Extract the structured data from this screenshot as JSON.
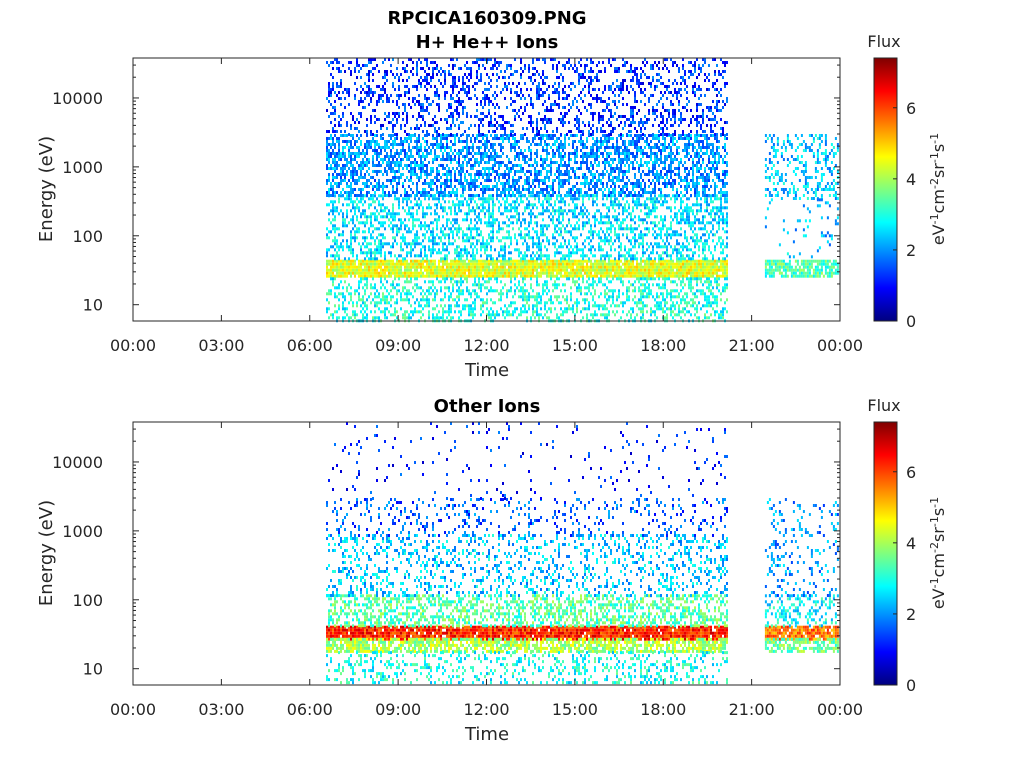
{
  "figure_title": "RPCICA160309.PNG",
  "colormap": [
    "#00007f",
    "#0000ff",
    "#007fff",
    "#00ffff",
    "#7fff7f",
    "#ffff00",
    "#ff7f00",
    "#ff0000",
    "#7f0000"
  ],
  "chart_data": [
    {
      "type": "heatmap",
      "title": "H+ He++ Ions",
      "xlabel": "Time",
      "ylabel": "Energy (eV)",
      "xticks": [
        "00:00",
        "03:00",
        "06:00",
        "09:00",
        "12:00",
        "15:00",
        "18:00",
        "21:00",
        "00:00"
      ],
      "xlim_hours": [
        0,
        24
      ],
      "yticks": [
        {
          "value": 10,
          "label": "10"
        },
        {
          "value": 100,
          "label": "100"
        },
        {
          "value": 1000,
          "label": "1000"
        },
        {
          "value": 10000,
          "label": "10000"
        }
      ],
      "ylim": [
        5.8,
        38000
      ],
      "yscale": "log",
      "colorbar": {
        "label": "Flux",
        "units": "eV-1cm-2sr-1s-1",
        "ticks": [
          0,
          2,
          4,
          6
        ],
        "range": [
          0,
          7.4
        ]
      },
      "coverage_hours": [
        [
          6.55,
          20.15
        ],
        [
          21.45,
          23.9
        ]
      ],
      "bands": [
        {
          "emin": 25,
          "emax": 45,
          "flux": 4.4,
          "density": 0.95,
          "hours": [
            6.55,
            20.15
          ]
        },
        {
          "emin": 25,
          "emax": 45,
          "flux": 3.3,
          "density": 0.75,
          "hours": [
            21.45,
            23.9
          ]
        },
        {
          "emin": 6,
          "emax": 25,
          "flux": 3.0,
          "density": 0.4,
          "hours": [
            6.55,
            20.15
          ]
        },
        {
          "emin": 45,
          "emax": 400,
          "flux": 2.6,
          "density": 0.45,
          "hours": [
            6.55,
            20.15
          ]
        },
        {
          "emin": 400,
          "emax": 3000,
          "flux": 2.0,
          "density": 0.55,
          "hours": [
            6.55,
            20.15
          ]
        },
        {
          "emin": 3000,
          "emax": 38000,
          "flux": 1.3,
          "density": 0.3,
          "hours": [
            6.55,
            20.15
          ]
        },
        {
          "emin": 350,
          "emax": 3000,
          "flux": 2.4,
          "density": 0.3,
          "hours": [
            21.45,
            23.9
          ]
        },
        {
          "emin": 50,
          "emax": 350,
          "flux": 2.3,
          "density": 0.08,
          "hours": [
            21.45,
            23.9
          ]
        }
      ]
    },
    {
      "type": "heatmap",
      "title": "Other Ions",
      "xlabel": "Time",
      "ylabel": "Energy (eV)",
      "xticks": [
        "00:00",
        "03:00",
        "06:00",
        "09:00",
        "12:00",
        "15:00",
        "18:00",
        "21:00",
        "00:00"
      ],
      "xlim_hours": [
        0,
        24
      ],
      "yticks": [
        {
          "value": 10,
          "label": "10"
        },
        {
          "value": 100,
          "label": "100"
        },
        {
          "value": 1000,
          "label": "1000"
        },
        {
          "value": 10000,
          "label": "10000"
        }
      ],
      "ylim": [
        5.8,
        38000
      ],
      "yscale": "log",
      "colorbar": {
        "label": "Flux",
        "units": "eV-1cm-2sr-1s-1",
        "ticks": [
          0,
          2,
          4,
          6
        ],
        "range": [
          0,
          7.4
        ]
      },
      "coverage_hours": [
        [
          6.55,
          20.15
        ],
        [
          21.45,
          23.9
        ]
      ],
      "bands": [
        {
          "emin": 28,
          "emax": 42,
          "flux": 6.2,
          "density": 0.95,
          "hours": [
            6.55,
            20.15
          ]
        },
        {
          "emin": 28,
          "emax": 42,
          "flux": 5.6,
          "density": 0.85,
          "hours": [
            21.45,
            23.9
          ]
        },
        {
          "emin": 18,
          "emax": 28,
          "flux": 4.0,
          "density": 0.7,
          "hours": [
            6.55,
            20.15
          ]
        },
        {
          "emin": 18,
          "emax": 28,
          "flux": 3.6,
          "density": 0.6,
          "hours": [
            21.45,
            23.9
          ]
        },
        {
          "emin": 42,
          "emax": 120,
          "flux": 3.4,
          "density": 0.5,
          "hours": [
            6.55,
            20.15
          ]
        },
        {
          "emin": 42,
          "emax": 120,
          "flux": 2.8,
          "density": 0.35,
          "hours": [
            21.45,
            23.9
          ]
        },
        {
          "emin": 120,
          "emax": 900,
          "flux": 2.4,
          "density": 0.25,
          "hours": [
            6.55,
            20.15
          ]
        },
        {
          "emin": 900,
          "emax": 3000,
          "flux": 1.6,
          "density": 0.15,
          "hours": [
            6.55,
            20.15
          ]
        },
        {
          "emin": 3000,
          "emax": 38000,
          "flux": 1.2,
          "density": 0.04,
          "hours": [
            6.55,
            20.15
          ]
        },
        {
          "emin": 6,
          "emax": 18,
          "flux": 2.9,
          "density": 0.25,
          "hours": [
            6.55,
            20.15
          ]
        },
        {
          "emin": 120,
          "emax": 3000,
          "flux": 2.0,
          "density": 0.15,
          "hours": [
            21.45,
            23.9
          ]
        }
      ]
    }
  ]
}
